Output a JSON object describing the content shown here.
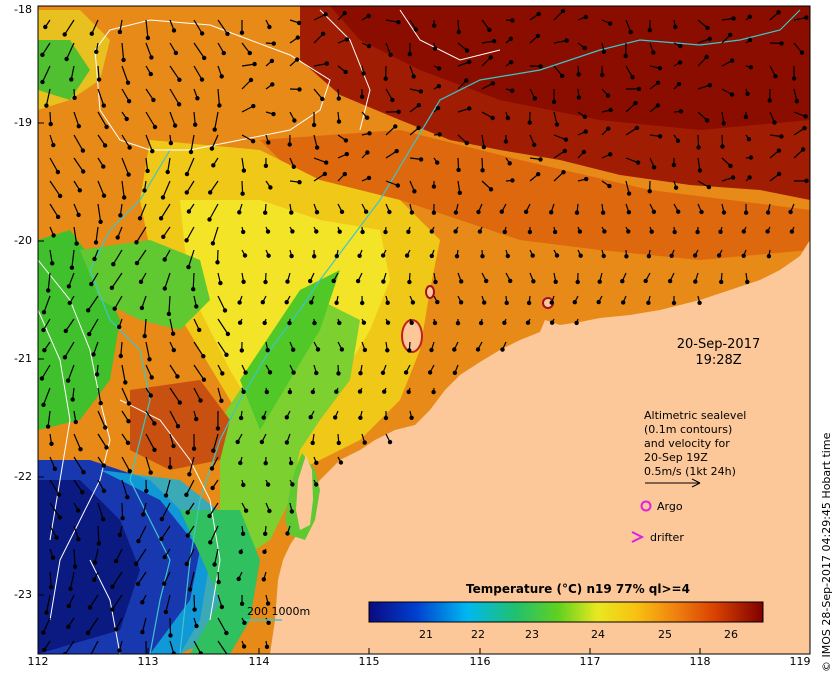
{
  "map": {
    "x_ticks": [
      "112",
      "113",
      "114",
      "115",
      "116",
      "117",
      "118",
      "119"
    ],
    "y_ticks": [
      "-18",
      "-19",
      "-20",
      "-21",
      "-22",
      "-23"
    ],
    "date": "20-Sep-2017",
    "time": "19:28Z",
    "sealevel_legend": [
      "Altimetric sealevel",
      "(0.1m contours)",
      "and velocity for",
      "20-Sep 19Z",
      "0.5m/s (1kt 24h)"
    ],
    "argo_label": "Argo",
    "drifter_label": "drifter",
    "depth_legend": "200  1000m",
    "colorbar_title": "Temperature (°C) n19 77% ql>=4",
    "colorbar_ticks": [
      "21",
      "22",
      "23",
      "24",
      "25",
      "26"
    ],
    "credit": "© IMOS 28-Sep-2017 04:29:45 Hobart time",
    "colors": {
      "land": "#fcc89a",
      "warm": "#8b0d00",
      "orange": "#e87a10",
      "yellow": "#f4e020",
      "green": "#43c52c",
      "blue": "#102090",
      "contour_bathy": "#3cc6c8",
      "argo": "#e020e0"
    }
  }
}
